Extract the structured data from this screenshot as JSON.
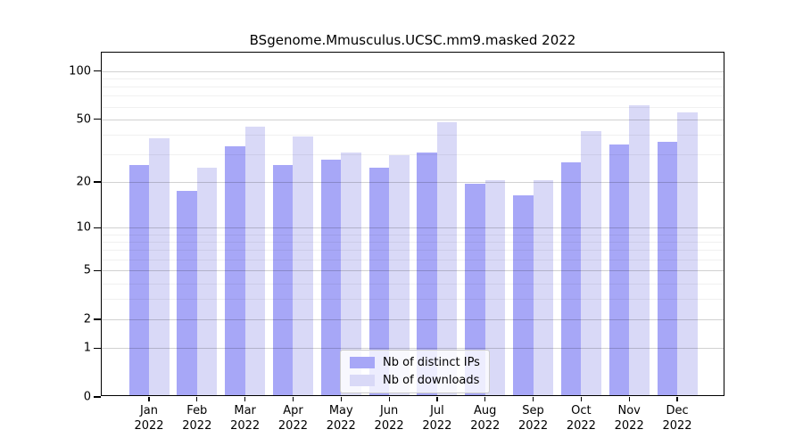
{
  "title": "BSgenome.Mmusculus.UCSC.mm9.masked 2022",
  "colors": {
    "distinct_ips_bar": "#a7a7f7",
    "downloads_bar": "#d9d9f7",
    "axis": "#000000",
    "grid_major": "#c9c9c9",
    "grid_minor": "#efefef",
    "legend_border": "#cccccc"
  },
  "chart_data": {
    "type": "bar",
    "scale": "log1p",
    "title": "BSgenome.Mmusculus.UCSC.mm9.masked 2022",
    "xlabel": "",
    "ylabel": "",
    "categories": [
      "Jan",
      "Feb",
      "Mar",
      "Apr",
      "May",
      "Jun",
      "Jul",
      "Aug",
      "Sep",
      "Oct",
      "Nov",
      "Dec"
    ],
    "category_year": "2022",
    "series": [
      {
        "name": "Nb of distinct IPs",
        "color": "#a7a7f7",
        "values": [
          25,
          17,
          33,
          25,
          27,
          24,
          30,
          19,
          16,
          26,
          34,
          35
        ]
      },
      {
        "name": "Nb of downloads",
        "color": "#d9d9f7",
        "values": [
          37,
          24,
          44,
          38,
          30,
          29,
          47,
          20,
          20,
          41,
          60,
          54
        ]
      }
    ],
    "ylim": [
      0,
      130
    ],
    "yticks": [
      0,
      1,
      2,
      5,
      10,
      20,
      50,
      100
    ],
    "minor_gridlines": [
      3,
      4,
      6,
      7,
      8,
      9,
      30,
      40,
      60,
      70,
      80,
      90
    ],
    "grid": true,
    "legend_position": "inside bottom-center"
  },
  "legend": {
    "items": [
      {
        "label": "Nb of distinct IPs",
        "key": "distinct-ips"
      },
      {
        "label": "Nb of downloads",
        "key": "downloads"
      }
    ]
  }
}
